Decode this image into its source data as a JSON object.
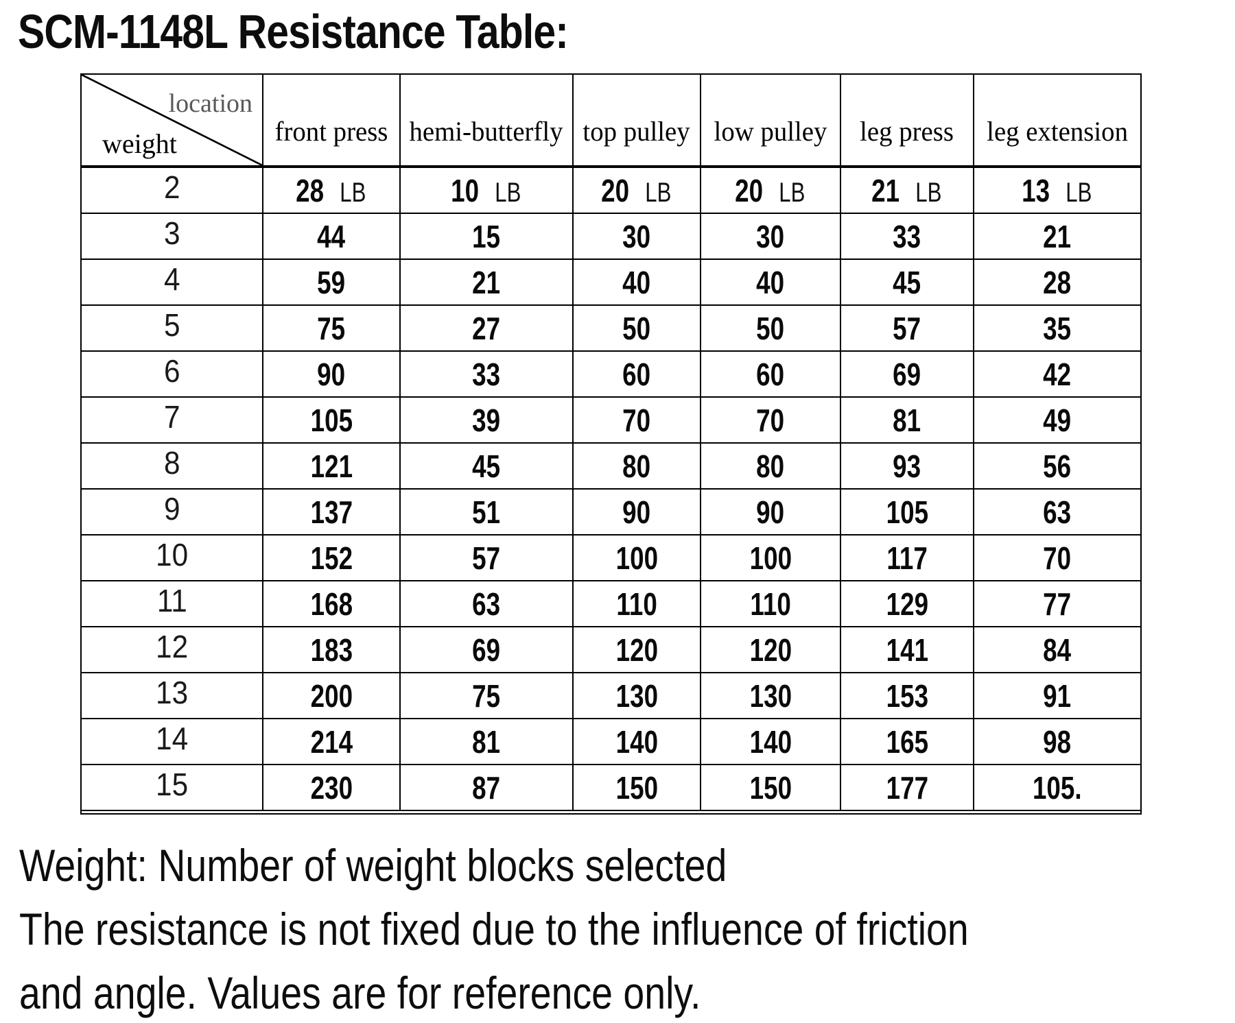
{
  "title": "SCM-1148L Resistance Table:",
  "table": {
    "corner": {
      "location_label": "location",
      "weight_label": "weight"
    },
    "columns": [
      "front press",
      "hemi-butterfly",
      "top pulley",
      "low pulley",
      "leg press",
      "leg extension"
    ],
    "unit": "LB",
    "rows": [
      {
        "weight": "2",
        "show_unit": true,
        "values": [
          "28",
          "10",
          "20",
          "20",
          "21",
          "13"
        ]
      },
      {
        "weight": "3",
        "show_unit": false,
        "values": [
          "44",
          "15",
          "30",
          "30",
          "33",
          "21"
        ]
      },
      {
        "weight": "4",
        "show_unit": false,
        "values": [
          "59",
          "21",
          "40",
          "40",
          "45",
          "28"
        ]
      },
      {
        "weight": "5",
        "show_unit": false,
        "values": [
          "75",
          "27",
          "50",
          "50",
          "57",
          "35"
        ]
      },
      {
        "weight": "6",
        "show_unit": false,
        "values": [
          "90",
          "33",
          "60",
          "60",
          "69",
          "42"
        ]
      },
      {
        "weight": "7",
        "show_unit": false,
        "values": [
          "105",
          "39",
          "70",
          "70",
          "81",
          "49"
        ]
      },
      {
        "weight": "8",
        "show_unit": false,
        "values": [
          "121",
          "45",
          "80",
          "80",
          "93",
          "56"
        ]
      },
      {
        "weight": "9",
        "show_unit": false,
        "values": [
          "137",
          "51",
          "90",
          "90",
          "105",
          "63"
        ]
      },
      {
        "weight": "10",
        "show_unit": false,
        "values": [
          "152",
          "57",
          "100",
          "100",
          "117",
          "70"
        ]
      },
      {
        "weight": "11",
        "show_unit": false,
        "values": [
          "168",
          "63",
          "110",
          "110",
          "129",
          "77"
        ]
      },
      {
        "weight": "12",
        "show_unit": false,
        "values": [
          "183",
          "69",
          "120",
          "120",
          "141",
          "84"
        ]
      },
      {
        "weight": "13",
        "show_unit": false,
        "values": [
          "200",
          "75",
          "130",
          "130",
          "153",
          "91"
        ]
      },
      {
        "weight": "14",
        "show_unit": false,
        "values": [
          "214",
          "81",
          "140",
          "140",
          "165",
          "98"
        ]
      },
      {
        "weight": "15",
        "show_unit": false,
        "values": [
          "230",
          "87",
          "150",
          "150",
          "177",
          "105."
        ]
      }
    ]
  },
  "notes": [
    "Weight: Number of weight blocks selected",
    "The resistance is not fixed due to the influence of friction",
    "and angle. Values are for reference only."
  ]
}
